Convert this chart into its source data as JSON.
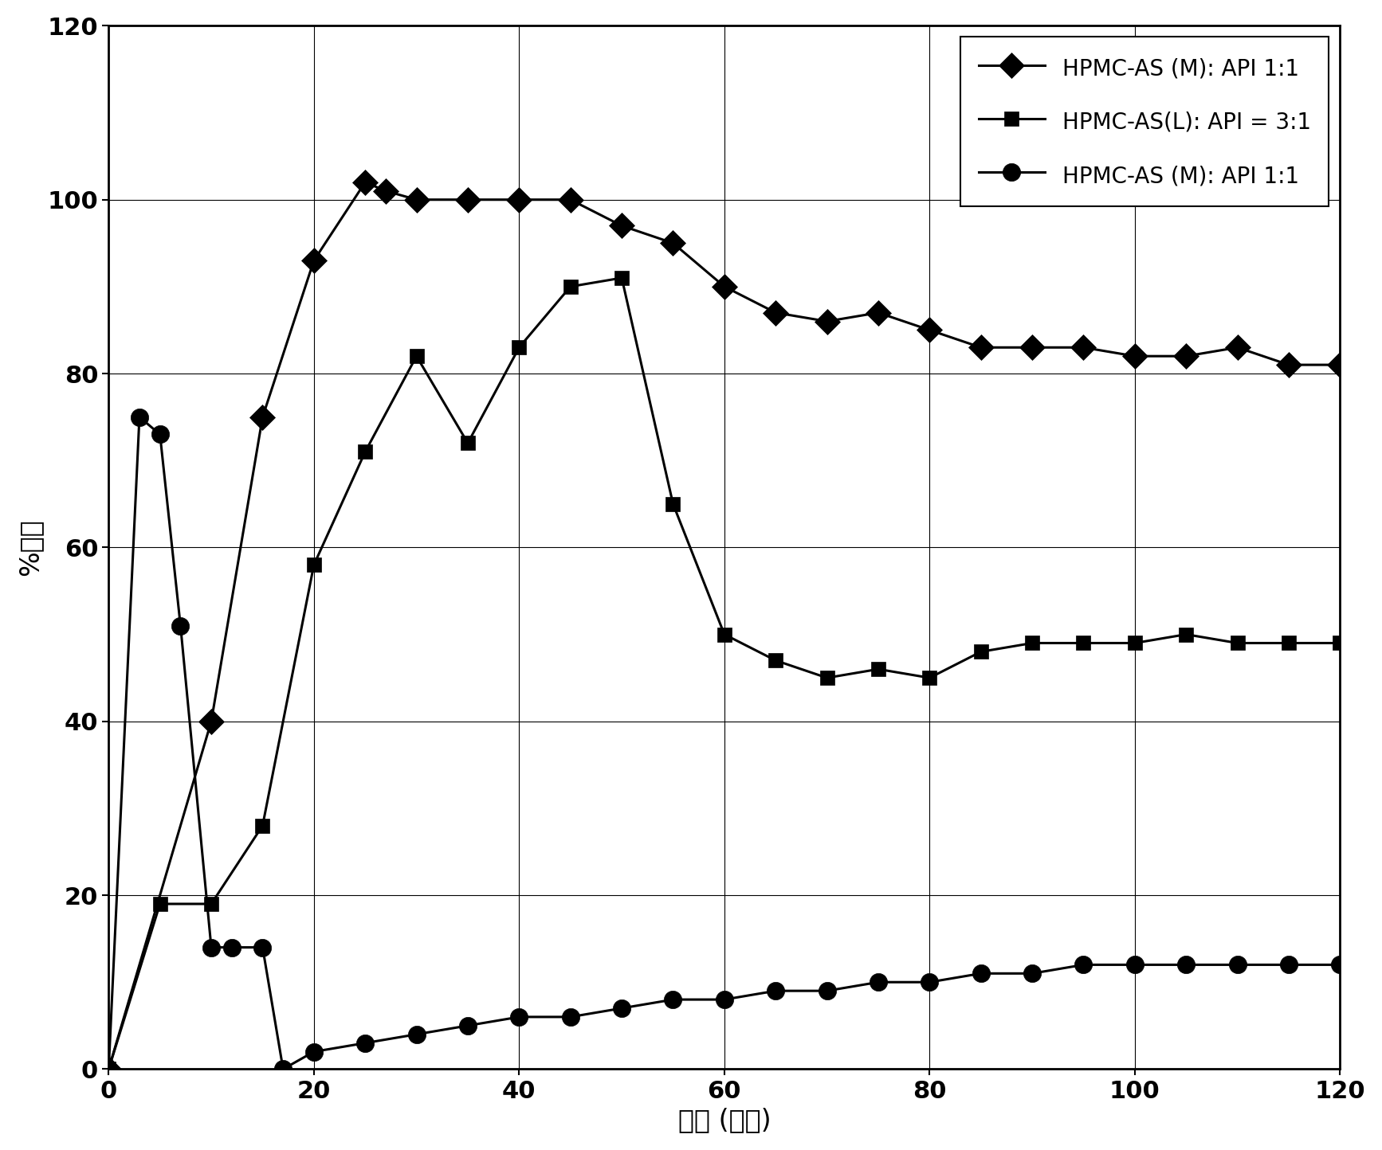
{
  "series1": {
    "label": "HPMC-AS (M): API 1:1",
    "marker": "D",
    "x": [
      0,
      10,
      15,
      20,
      25,
      27,
      30,
      35,
      40,
      45,
      50,
      55,
      60,
      65,
      70,
      75,
      80,
      85,
      90,
      95,
      100,
      105,
      110,
      115,
      120
    ],
    "y": [
      0,
      40,
      75,
      93,
      102,
      101,
      100,
      100,
      100,
      100,
      97,
      95,
      90,
      87,
      86,
      87,
      85,
      83,
      83,
      83,
      82,
      82,
      83,
      81,
      81
    ]
  },
  "series2": {
    "label": "HPMC-AS(L): API = 3:1",
    "marker": "s",
    "x": [
      0,
      5,
      10,
      15,
      20,
      25,
      30,
      35,
      40,
      45,
      50,
      55,
      60,
      65,
      70,
      75,
      80,
      85,
      90,
      95,
      100,
      105,
      110,
      115,
      120
    ],
    "y": [
      0,
      19,
      19,
      28,
      58,
      71,
      82,
      72,
      83,
      90,
      91,
      65,
      50,
      47,
      45,
      46,
      45,
      48,
      49,
      49,
      49,
      50,
      49,
      49,
      49
    ]
  },
  "series3": {
    "label": "HPMC-AS (M): API 1:1",
    "marker": "o",
    "x": [
      0,
      3,
      5,
      7,
      10,
      12,
      15,
      17,
      20,
      25,
      30,
      35,
      40,
      45,
      50,
      55,
      60,
      65,
      70,
      75,
      80,
      85,
      90,
      95,
      100,
      105,
      110,
      115,
      120
    ],
    "y": [
      0,
      75,
      73,
      51,
      14,
      14,
      14,
      0,
      2,
      3,
      4,
      5,
      6,
      6,
      7,
      8,
      8,
      9,
      9,
      10,
      10,
      11,
      11,
      12,
      12,
      12,
      12,
      12,
      12
    ]
  },
  "xlabel": "时间 (分钟)",
  "ylabel": "%回收",
  "xlim": [
    0,
    120
  ],
  "ylim": [
    0,
    120
  ],
  "xticks": [
    0,
    20,
    40,
    60,
    80,
    100,
    120
  ],
  "yticks": [
    0,
    20,
    40,
    60,
    80,
    100,
    120
  ],
  "color": "#000000",
  "background": "#ffffff",
  "marker_size_diamond": 16,
  "marker_size_square": 13,
  "marker_size_circle": 16,
  "linewidth": 2.2
}
